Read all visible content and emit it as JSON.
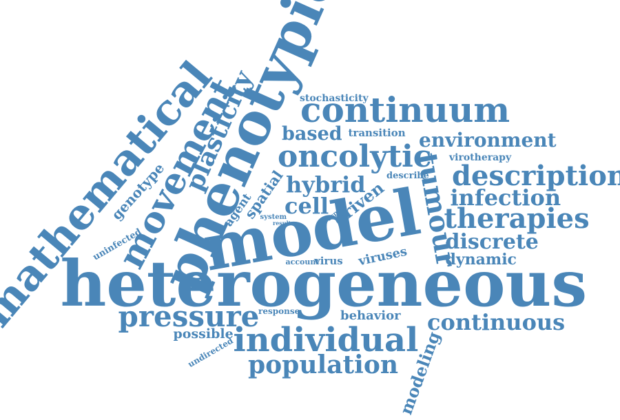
{
  "colors": {
    "word": "#4a86b8",
    "background": "#ffffff"
  },
  "words": [
    {
      "key": "heterogeneous",
      "text": "heterogeneous"
    },
    {
      "key": "model",
      "text": "model"
    },
    {
      "key": "phenotypic",
      "text": "phenotypic"
    },
    {
      "key": "mathematical",
      "text": "mathematical"
    },
    {
      "key": "movement",
      "text": "movement"
    },
    {
      "key": "plasticity",
      "text": "plasticity"
    },
    {
      "key": "continuum",
      "text": "continuum"
    },
    {
      "key": "oncolytic",
      "text": "oncolytic"
    },
    {
      "key": "description",
      "text": "description"
    },
    {
      "key": "environment",
      "text": "environment"
    },
    {
      "key": "based",
      "text": "based"
    },
    {
      "key": "transition",
      "text": "transition"
    },
    {
      "key": "stochasticity",
      "text": "stochasticity"
    },
    {
      "key": "hybrid",
      "text": "hybrid"
    },
    {
      "key": "describe",
      "text": "describe"
    },
    {
      "key": "virotherapy",
      "text": "virotherapy"
    },
    {
      "key": "tumour",
      "text": "tumour"
    },
    {
      "key": "infection",
      "text": "infection"
    },
    {
      "key": "therapies",
      "text": "therapies"
    },
    {
      "key": "discrete",
      "text": "discrete"
    },
    {
      "key": "dynamic",
      "text": "dynamic"
    },
    {
      "key": "cell",
      "text": "cell"
    },
    {
      "key": "driven",
      "text": "driven"
    },
    {
      "key": "spatial",
      "text": "spatial"
    },
    {
      "key": "agent",
      "text": "agent"
    },
    {
      "key": "genotype",
      "text": "genotype"
    },
    {
      "key": "system",
      "text": "system"
    },
    {
      "key": "result",
      "text": "result"
    },
    {
      "key": "aspect",
      "text": "aspect"
    },
    {
      "key": "uninfected",
      "text": "uninfected"
    },
    {
      "key": "account",
      "text": "account"
    },
    {
      "key": "virus",
      "text": "virus"
    },
    {
      "key": "viruses",
      "text": "viruses"
    },
    {
      "key": "pressure",
      "text": "pressure"
    },
    {
      "key": "response",
      "text": "response"
    },
    {
      "key": "behavior",
      "text": "behavior"
    },
    {
      "key": "continuous",
      "text": "continuous"
    },
    {
      "key": "possible",
      "text": "possible"
    },
    {
      "key": "individual",
      "text": "individual"
    },
    {
      "key": "undirected",
      "text": "undirected"
    },
    {
      "key": "population",
      "text": "population"
    },
    {
      "key": "modeling",
      "text": "modeling"
    }
  ]
}
